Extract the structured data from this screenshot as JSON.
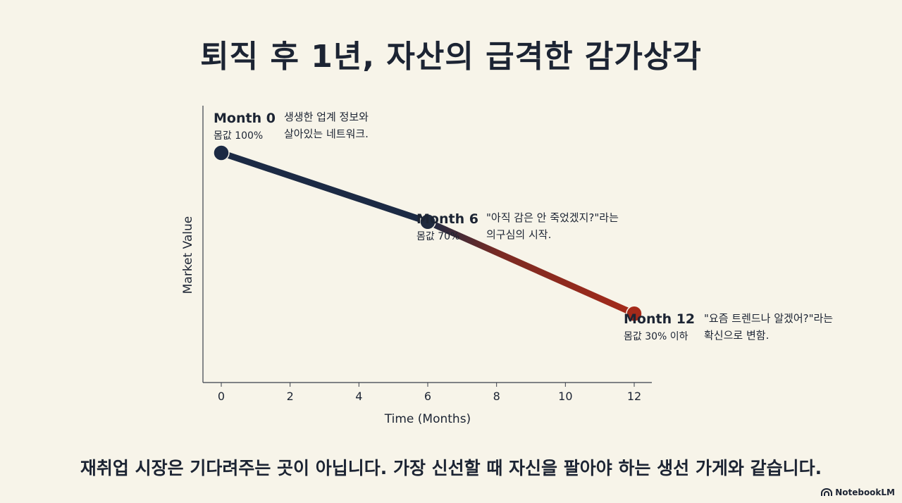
{
  "title": "퇴직 후 1년, 자산의 급격한 감가상각",
  "footer": "재취업 시장은 기다려주는 곳이 아닙니다. 가장 신선할 때 자신을 팔아야 하는 생선 가게와 같습니다.",
  "brand": "NotebookLM",
  "brand_icon": "notebooklm-logo-icon",
  "colors": {
    "background": "#f7f4e9",
    "navy": "#1c2a44",
    "red": "#a52a1a",
    "text": "#1c2433"
  },
  "chart_data": {
    "type": "line",
    "xlabel": "Time (Months)",
    "ylabel": "Market Value",
    "x_ticks": [
      0,
      2,
      4,
      6,
      8,
      10,
      12
    ],
    "xlim": [
      0,
      12
    ],
    "ylim": [
      0,
      110
    ],
    "grid": false,
    "y_tick_labels": false,
    "series": [
      {
        "x": [
          0,
          6,
          12
        ],
        "y": [
          100,
          70,
          30
        ]
      }
    ],
    "annotations": [
      {
        "x": 0,
        "y": 100,
        "label": "Month 0",
        "sub": "몸값 100%",
        "note": [
          "생생한 업계 정보와",
          "살아있는 네트워크."
        ]
      },
      {
        "x": 6,
        "y": 70,
        "label": "Month 6",
        "sub": "몸값 70%",
        "note": [
          "\"아직 감은 안 죽었겠지?\"라는",
          "의구심의 시작."
        ]
      },
      {
        "x": 12,
        "y": 30,
        "label": "Month 12",
        "sub": "몸값 30% 이하",
        "note": [
          "\"요즘 트렌드나 알겠어?\"라는",
          "확신으로 변함."
        ]
      }
    ]
  }
}
